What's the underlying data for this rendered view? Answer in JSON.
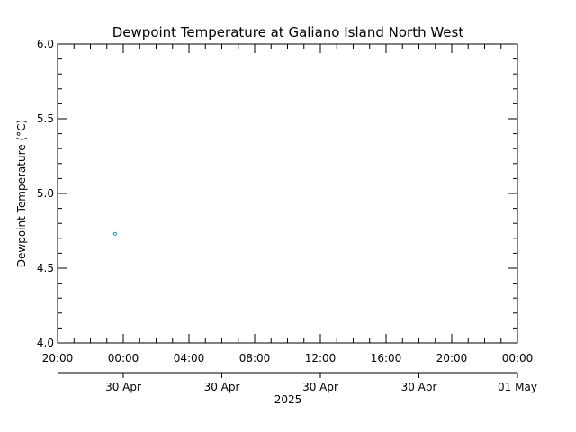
{
  "chart_data": {
    "type": "scatter",
    "title": "Dewpoint Temperature at Galiano Island North West",
    "ylabel": "Dewpoint Temperature (°C)",
    "ylim": [
      4.0,
      6.0
    ],
    "y_major_ticks": [
      4.0,
      4.5,
      5.0,
      5.5,
      6.0
    ],
    "y_tick_labels": [
      "4.0",
      "4.5",
      "5.0",
      "5.5",
      "6.0"
    ],
    "y_minor_step": 0.1,
    "xlim": [
      "2025-04-29 20:00",
      "2025-05-01 00:00"
    ],
    "x_tick_times": [
      "2025-04-29 20:00",
      "2025-04-30 00:00",
      "2025-04-30 04:00",
      "2025-04-30 08:00",
      "2025-04-30 12:00",
      "2025-04-30 16:00",
      "2025-04-30 20:00",
      "2025-05-01 00:00"
    ],
    "x_tick_labels": [
      "20:00",
      "00:00",
      "04:00",
      "08:00",
      "12:00",
      "16:00",
      "20:00",
      "00:00"
    ],
    "x_minor_step_hours": 1,
    "date_axis": {
      "ticks": [
        "2025-04-30 00:00",
        "2025-04-30 06:00",
        "2025-04-30 12:00",
        "2025-04-30 18:00",
        "2025-05-01 00:00"
      ],
      "labels": [
        "30 Apr",
        "30 Apr",
        "30 Apr",
        "30 Apr",
        "01 May"
      ],
      "year_label": "2025"
    },
    "series": [
      {
        "color": "#00a0a0",
        "marker": "circle",
        "x": [
          "2025-04-29 23:30"
        ],
        "y": [
          4.73
        ]
      }
    ],
    "grid": false,
    "legend": "none"
  }
}
